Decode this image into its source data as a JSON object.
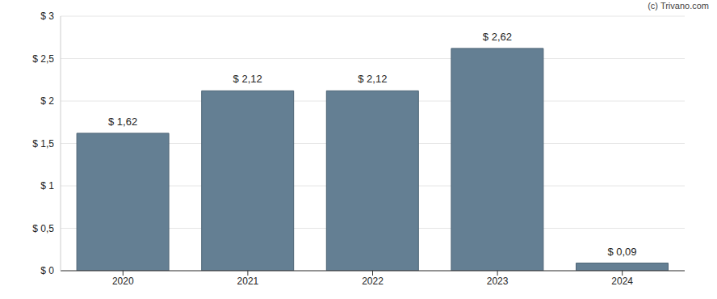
{
  "chart_data": {
    "type": "bar",
    "annotation": "(c) Trivano.com",
    "categories": [
      "2020",
      "2021",
      "2022",
      "2023",
      "2024"
    ],
    "values": [
      1.62,
      2.12,
      2.12,
      2.62,
      0.09
    ],
    "value_labels": [
      "$ 1,62",
      "$ 2,12",
      "$ 2,12",
      "$ 2,62",
      "$ 0,09"
    ],
    "data_labels": true,
    "color": "#647f93",
    "ylim": [
      0,
      3
    ],
    "yticks": [
      {
        "value": 0,
        "label": "$ 0"
      },
      {
        "value": 0.5,
        "label": "$ 0,5"
      },
      {
        "value": 1,
        "label": "$ 1"
      },
      {
        "value": 1.5,
        "label": "$ 1,5"
      },
      {
        "value": 2,
        "label": "$ 2"
      },
      {
        "value": 2.5,
        "label": "$ 2,5"
      },
      {
        "value": 3,
        "label": "$ 3"
      }
    ],
    "grid": true
  }
}
